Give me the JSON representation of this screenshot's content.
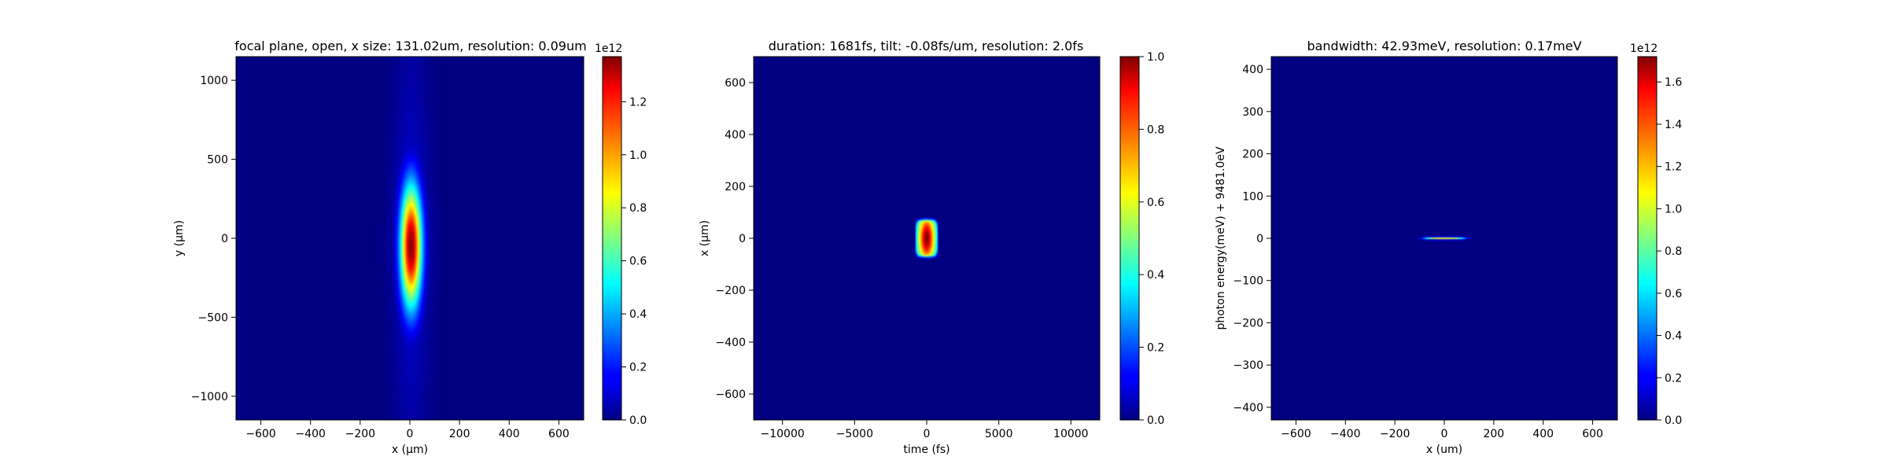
{
  "chart_data": [
    {
      "type": "heatmap",
      "title": "focal plane, open, x size: 131.02um, resolution: 0.09um",
      "xlabel": "x (μm)",
      "ylabel": "y (μm)",
      "xlim": [
        -700,
        700
      ],
      "ylim": [
        -1150,
        1150
      ],
      "xticks": [
        -600,
        -400,
        -200,
        0,
        200,
        400,
        600
      ],
      "yticks": [
        -1000,
        -500,
        0,
        500,
        1000
      ],
      "colormap": "jet",
      "colorbar": {
        "min": 0.0,
        "max": 1.37,
        "ticks": [
          "0.0",
          "0.2",
          "0.4",
          "0.6",
          "0.8",
          "1.0",
          "1.2"
        ],
        "tick_values": [
          0.0,
          0.2,
          0.4,
          0.6,
          0.8,
          1.0,
          1.2
        ],
        "offset": "1e12"
      },
      "feature": {
        "shape": "gaussian-ellipse",
        "center": [
          5,
          -50
        ],
        "sigma": [
          30,
          270
        ],
        "peak": 1.37,
        "base_range_x": 70
      }
    },
    {
      "type": "heatmap",
      "title": "duration: 1681fs, tilt: -0.08fs/um, resolution: 2.0fs",
      "xlabel": "time (fs)",
      "ylabel": "x (μm)",
      "xlim": [
        -12000,
        12000
      ],
      "ylim": [
        -700,
        700
      ],
      "xticks": [
        -10000,
        -5000,
        0,
        5000,
        10000
      ],
      "yticks": [
        -600,
        -400,
        -200,
        0,
        200,
        400,
        600
      ],
      "colormap": "jet",
      "colorbar": {
        "min": 0.0,
        "max": 1.0,
        "ticks": [
          "0.0",
          "0.2",
          "0.4",
          "0.6",
          "0.8",
          "1.0"
        ],
        "tick_values": [
          0.0,
          0.2,
          0.4,
          0.6,
          0.8,
          1.0
        ],
        "offset": ""
      },
      "feature": {
        "shape": "pulse",
        "center": [
          0,
          0
        ],
        "half_width": [
          800,
          75
        ],
        "peak": 1.0
      }
    },
    {
      "type": "heatmap",
      "title": "bandwidth: 42.93meV, resolution: 0.17meV",
      "xlabel": "x (um)",
      "ylabel": "photon energy(meV) + 9481.0eV",
      "xlim": [
        -700,
        700
      ],
      "ylim": [
        -430,
        430
      ],
      "xticks": [
        -600,
        -400,
        -200,
        0,
        200,
        400,
        600
      ],
      "yticks": [
        -400,
        -300,
        -200,
        -100,
        0,
        100,
        200,
        300,
        400
      ],
      "colormap": "jet",
      "colorbar": {
        "min": 0.0,
        "max": 1.72,
        "ticks": [
          "0.0",
          "0.2",
          "0.4",
          "0.6",
          "0.8",
          "1.0",
          "1.2",
          "1.4",
          "1.6"
        ],
        "tick_values": [
          0.0,
          0.2,
          0.4,
          0.6,
          0.8,
          1.0,
          1.2,
          1.4,
          1.6
        ],
        "offset": "1e12"
      },
      "feature": {
        "shape": "line",
        "center": [
          0,
          0
        ],
        "half_width": [
          70,
          2
        ],
        "peak": 1.0
      }
    }
  ]
}
